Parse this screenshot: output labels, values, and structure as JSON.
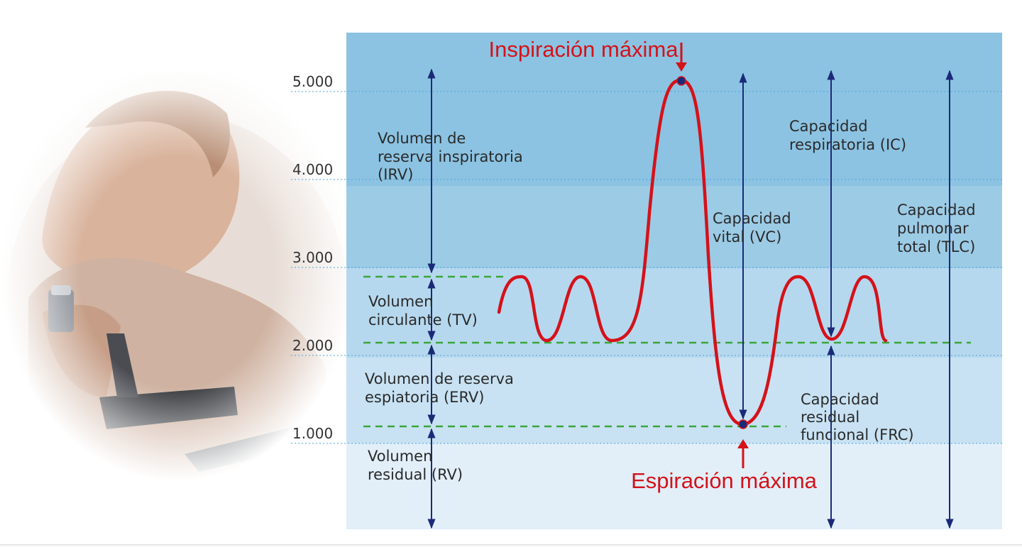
{
  "y_axis": {
    "ticks": [
      {
        "value": 5000,
        "label": "5.000"
      },
      {
        "value": 4000,
        "label": "4.000"
      },
      {
        "value": 3000,
        "label": "3.000"
      },
      {
        "value": 2000,
        "label": "2.000"
      },
      {
        "value": 1000,
        "label": "1.000"
      }
    ]
  },
  "annotations": {
    "max_inspiration": "Inspiración máxima",
    "max_expiration": "Espiración máxima"
  },
  "labels": {
    "irv": [
      "Volumen de",
      "reserva inspiratoria",
      "(IRV)"
    ],
    "tv": [
      "Volumen",
      "circulante (TV)"
    ],
    "erv": [
      "Volumen de reserva",
      "espiatoria (ERV)"
    ],
    "rv": [
      "Volumen",
      "residual (RV)"
    ],
    "vc": [
      "Capacidad",
      "vital (VC)"
    ],
    "ic": [
      "Capacidad",
      "respiratoria (IC)"
    ],
    "frc": [
      "Capacidad",
      "residual",
      "funcional (FRC)"
    ],
    "tlc": [
      "Capacidad",
      "pulmonar",
      "total (TLC)"
    ]
  },
  "colors": {
    "curve": "#d4121a",
    "annotation": "#d4121a",
    "arrow": "#1b2a78",
    "dashed_level": "#3aa63a",
    "band_top": "#8cc3e2",
    "band_2": "#9ccbe6",
    "band_3": "#b6d8ee",
    "band_4": "#c8e2f3",
    "band_bottom": "#e2eff9"
  },
  "photo": {
    "icon": "woman-with-spirometer-photo"
  }
}
